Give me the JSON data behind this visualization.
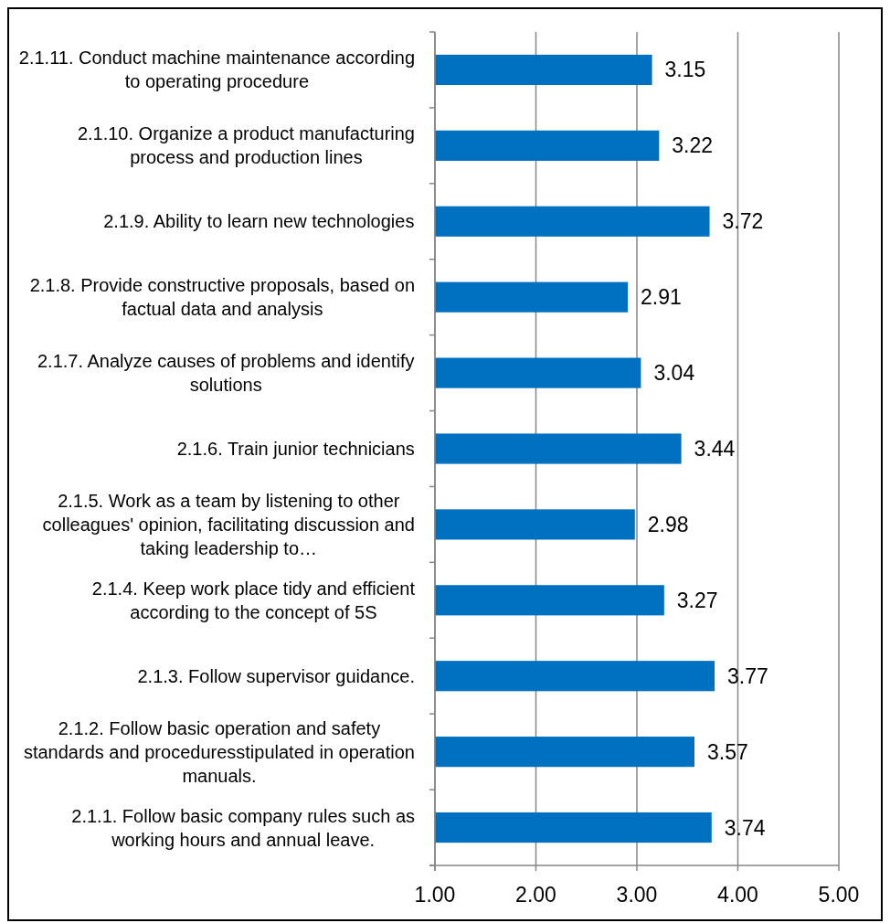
{
  "chart_data": {
    "type": "bar",
    "orientation": "horizontal",
    "categories": [
      "2.1.11. Conduct machine maintenance according to operating procedure",
      "2.1.10. Organize a product manufacturing process and production lines",
      "2.1.9. Ability to learn new technologies",
      "2.1.8. Provide constructive proposals, based on factual data and analysis",
      "2.1.7. Analyze causes of problems and identify solutions",
      "2.1.6. Train junior technicians",
      "2.1.5. Work as a team by listening to other colleagues' opinion, facilitating discussion and taking leadership to…",
      "2.1.4. Keep work place tidy and efficient according to the concept of 5S",
      "2.1.3. Follow supervisor guidance.",
      "2.1.2. Follow basic operation and safety standards and proceduresstipulated in operation manuals.",
      "2.1.1. Follow basic company rules such as working hours and annual leave."
    ],
    "values": [
      3.15,
      3.22,
      3.72,
      2.91,
      3.04,
      3.44,
      2.98,
      3.27,
      3.77,
      3.57,
      3.74
    ],
    "color": "#0070c0",
    "xlim": [
      1,
      5
    ],
    "xticks": [
      {
        "value": 1,
        "label": "1.00"
      },
      {
        "value": 2,
        "label": "2.00"
      },
      {
        "value": 3,
        "label": "3.00"
      },
      {
        "value": 4,
        "label": "4.00"
      },
      {
        "value": 5,
        "label": "5.00"
      }
    ],
    "grid": "x",
    "data_labels": true
  }
}
